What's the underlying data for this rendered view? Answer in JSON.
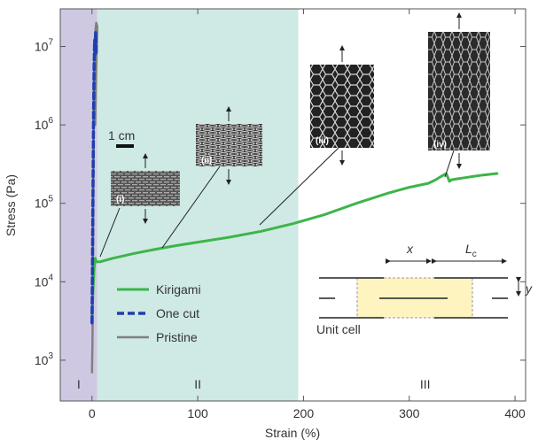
{
  "chart_data": {
    "type": "line",
    "xlabel": "Strain (%)",
    "ylabel": "Stress (Pa)",
    "xlim": [
      -30,
      410
    ],
    "ylim_log10": [
      2.48,
      7.48
    ],
    "yscale": "log",
    "x_ticks": [
      0,
      100,
      200,
      300,
      400
    ],
    "x_tick_labels": [
      "0",
      "100",
      "200",
      "300",
      "400"
    ],
    "y_ticks": [
      1000,
      10000,
      100000,
      1000000,
      10000000
    ],
    "y_tick_labels": [
      {
        "base": "10",
        "exp": "3"
      },
      {
        "base": "10",
        "exp": "4"
      },
      {
        "base": "10",
        "exp": "5"
      },
      {
        "base": "10",
        "exp": "6"
      },
      {
        "base": "10",
        "exp": "7"
      }
    ],
    "regions": [
      {
        "label": "I",
        "x0": -30,
        "x1": 5,
        "color": "#cfc8e3"
      },
      {
        "label": "II",
        "x0": 5,
        "x1": 195,
        "color": "#cfe9e4"
      },
      {
        "label": "III",
        "x0": 195,
        "x1": 410,
        "color": "#ffffff"
      }
    ],
    "series": [
      {
        "name": "Kirigami",
        "color": "#3cb54a",
        "style": "solid",
        "x": [
          0,
          1,
          2,
          3,
          4,
          8,
          20,
          40,
          60,
          80,
          100,
          130,
          160,
          190,
          220,
          250,
          280,
          300,
          318,
          325,
          330,
          335,
          338,
          340,
          345,
          350,
          355,
          360,
          370,
          383
        ],
        "y": [
          3000,
          8000,
          15000,
          20000,
          18000,
          18000,
          20000,
          23000,
          26000,
          29000,
          32000,
          37000,
          44000,
          55000,
          72000,
          100000,
          135000,
          160000,
          180000,
          200000,
          220000,
          240000,
          190000,
          200000,
          205000,
          210000,
          215000,
          220000,
          230000,
          240000
        ]
      },
      {
        "name": "One cut",
        "color": "#1f3fae",
        "style": "dashed",
        "x": [
          0,
          0.5,
          1,
          1.5,
          2,
          2.5,
          3,
          3.5,
          4
        ],
        "y": [
          3000,
          20000,
          200000,
          1500000,
          6000000,
          12000000,
          8000000,
          15000000,
          8000000
        ]
      },
      {
        "name": "Pristine",
        "color": "#808080",
        "style": "solid",
        "x": [
          0,
          0.5,
          1,
          1.5,
          2,
          2.5,
          3,
          4,
          5,
          4,
          3
        ],
        "y": [
          700,
          2000,
          50000,
          700000,
          4000000,
          12000000,
          15000000,
          20000000,
          18000000,
          5000000,
          1000000
        ]
      }
    ],
    "legend": {
      "placement": "bottom-left",
      "items": [
        "Kirigami",
        "One cut",
        "Pristine"
      ]
    }
  },
  "insets": {
    "i": {
      "label": "(i)"
    },
    "ii": {
      "label": "(ii)"
    },
    "iii": {
      "label": "(iii)"
    },
    "iv": {
      "label": "(iv)"
    },
    "scale_bar": "1 cm"
  },
  "unit_cell": {
    "caption": "Unit cell",
    "x_label": "x",
    "lc_label_main": "L",
    "lc_label_sub": "c",
    "y_label": "y"
  }
}
